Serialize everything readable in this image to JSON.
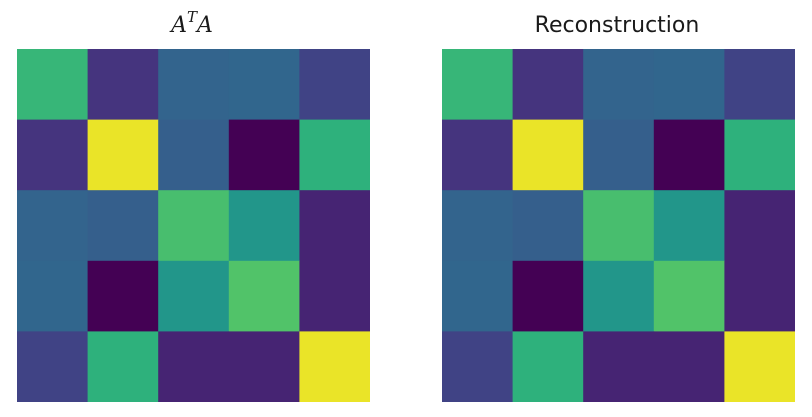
{
  "chart_data": [
    {
      "type": "heatmap",
      "title": {
        "base": "A",
        "superscript": "T",
        "suffix": "A"
      },
      "colormap": "viridis",
      "rows": 5,
      "cols": 5,
      "values": [
        [
          0.66,
          0.15,
          0.32,
          0.33,
          0.2
        ],
        [
          0.15,
          0.97,
          0.3,
          0.0,
          0.64
        ],
        [
          0.32,
          0.3,
          0.7,
          0.52,
          0.1
        ],
        [
          0.33,
          0.0,
          0.52,
          0.72,
          0.1
        ],
        [
          0.2,
          0.64,
          0.1,
          0.1,
          0.97
        ]
      ]
    },
    {
      "type": "heatmap",
      "title": "Reconstruction",
      "colormap": "viridis",
      "rows": 5,
      "cols": 5,
      "values": [
        [
          0.66,
          0.15,
          0.32,
          0.33,
          0.2
        ],
        [
          0.15,
          0.97,
          0.3,
          0.0,
          0.64
        ],
        [
          0.32,
          0.3,
          0.7,
          0.52,
          0.1
        ],
        [
          0.33,
          0.0,
          0.52,
          0.72,
          0.1
        ],
        [
          0.2,
          0.64,
          0.1,
          0.1,
          0.97
        ]
      ]
    }
  ]
}
